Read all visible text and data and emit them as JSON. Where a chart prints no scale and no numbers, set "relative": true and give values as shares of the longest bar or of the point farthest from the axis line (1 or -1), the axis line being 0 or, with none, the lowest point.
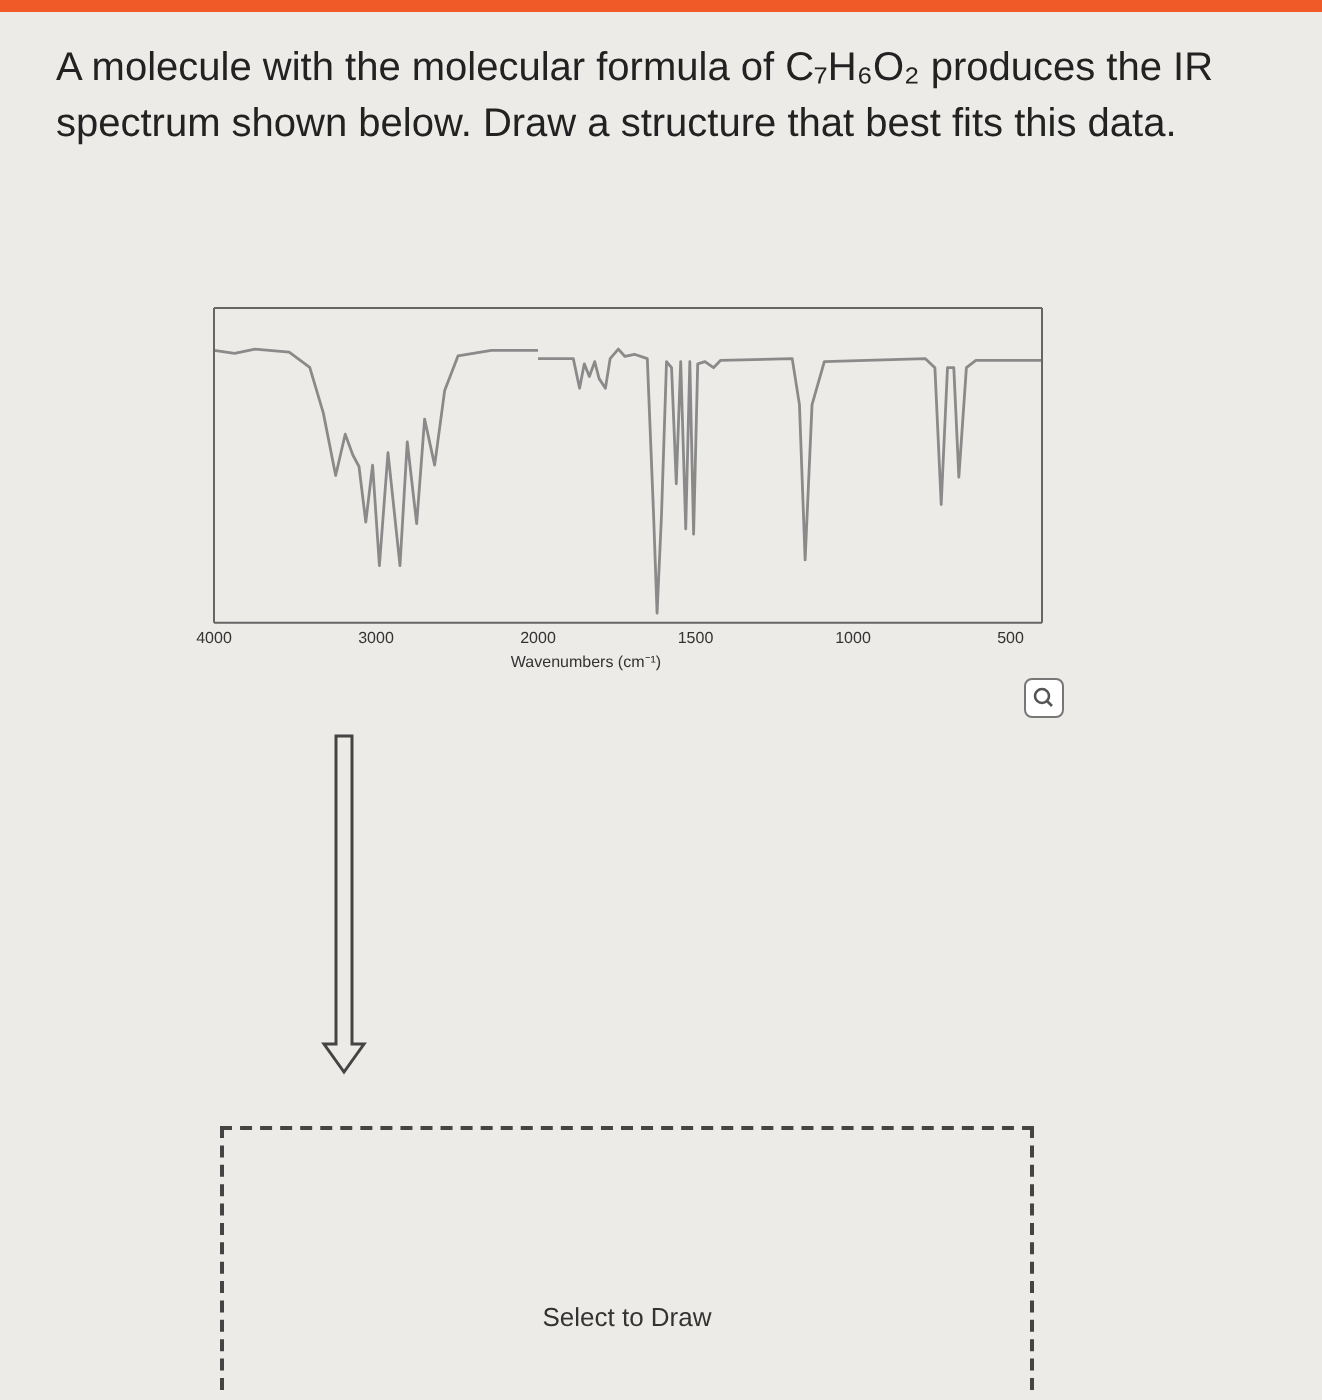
{
  "chart_data": [
    {
      "type": "line",
      "title": "A molecule with the molecular formula of C₇H₆O₂ produces the IR spectrum shown below. Draw a structure that best fits this data.",
      "relative": true,
      "xlim": [
        4000,
        2000
      ],
      "xticks": [
        4000,
        3000,
        2000
      ],
      "grid": false,
      "legend": false,
      "marker": "none",
      "annotations": [
        "Select to Draw"
      ],
      "series": [
        {
          "color": "#8a8a8a",
          "x": [
            4000,
            3873,
            3747,
            3536,
            3409,
            3325,
            3249,
            3190,
            3143,
            3105,
            3063,
            3021,
            2979,
            2926,
            2852,
            2807,
            2749,
            2700,
            2638,
            2576,
            2494,
            2288,
            2000
          ],
          "values": [
            0.995,
            0.984,
            1.0,
            0.989,
            0.933,
            0.766,
            0.538,
            0.689,
            0.613,
            0.571,
            0.368,
            0.576,
            0.209,
            0.622,
            0.209,
            0.661,
            0.362,
            0.744,
            0.576,
            0.849,
            0.975,
            0.995,
            0.995
          ]
        }
      ]
    },
    {
      "type": "line",
      "xlabel": "Wavenumbers (cm⁻¹)",
      "relative": true,
      "xlim": [
        2000,
        400
      ],
      "xticks": [
        1500,
        1000,
        500
      ],
      "grid": false,
      "legend": false,
      "marker": "none",
      "series": [
        {
          "color": "#8a8a8a",
          "x": [
            2000,
            1888,
            1868,
            1853,
            1837,
            1820,
            1806,
            1786,
            1771,
            1745,
            1724,
            1694,
            1653,
            1633,
            1622,
            1608,
            1592,
            1576,
            1561,
            1547,
            1531,
            1518,
            1506,
            1493,
            1470,
            1443,
            1420,
            1193,
            1170,
            1152,
            1130,
            1091,
            770,
            740,
            720,
            700,
            680,
            664,
            640,
            610,
            400
          ],
          "values": [
            0.965,
            0.965,
            0.857,
            0.946,
            0.9,
            0.954,
            0.892,
            0.857,
            0.965,
            1.0,
            0.973,
            0.981,
            0.965,
            0.392,
            0.035,
            0.392,
            0.954,
            0.932,
            0.508,
            0.954,
            0.343,
            0.954,
            0.324,
            0.946,
            0.954,
            0.932,
            0.959,
            0.965,
            0.797,
            0.23,
            0.797,
            0.954,
            0.965,
            0.932,
            0.432,
            0.932,
            0.932,
            0.532,
            0.932,
            0.959,
            0.959
          ]
        }
      ]
    }
  ]
}
